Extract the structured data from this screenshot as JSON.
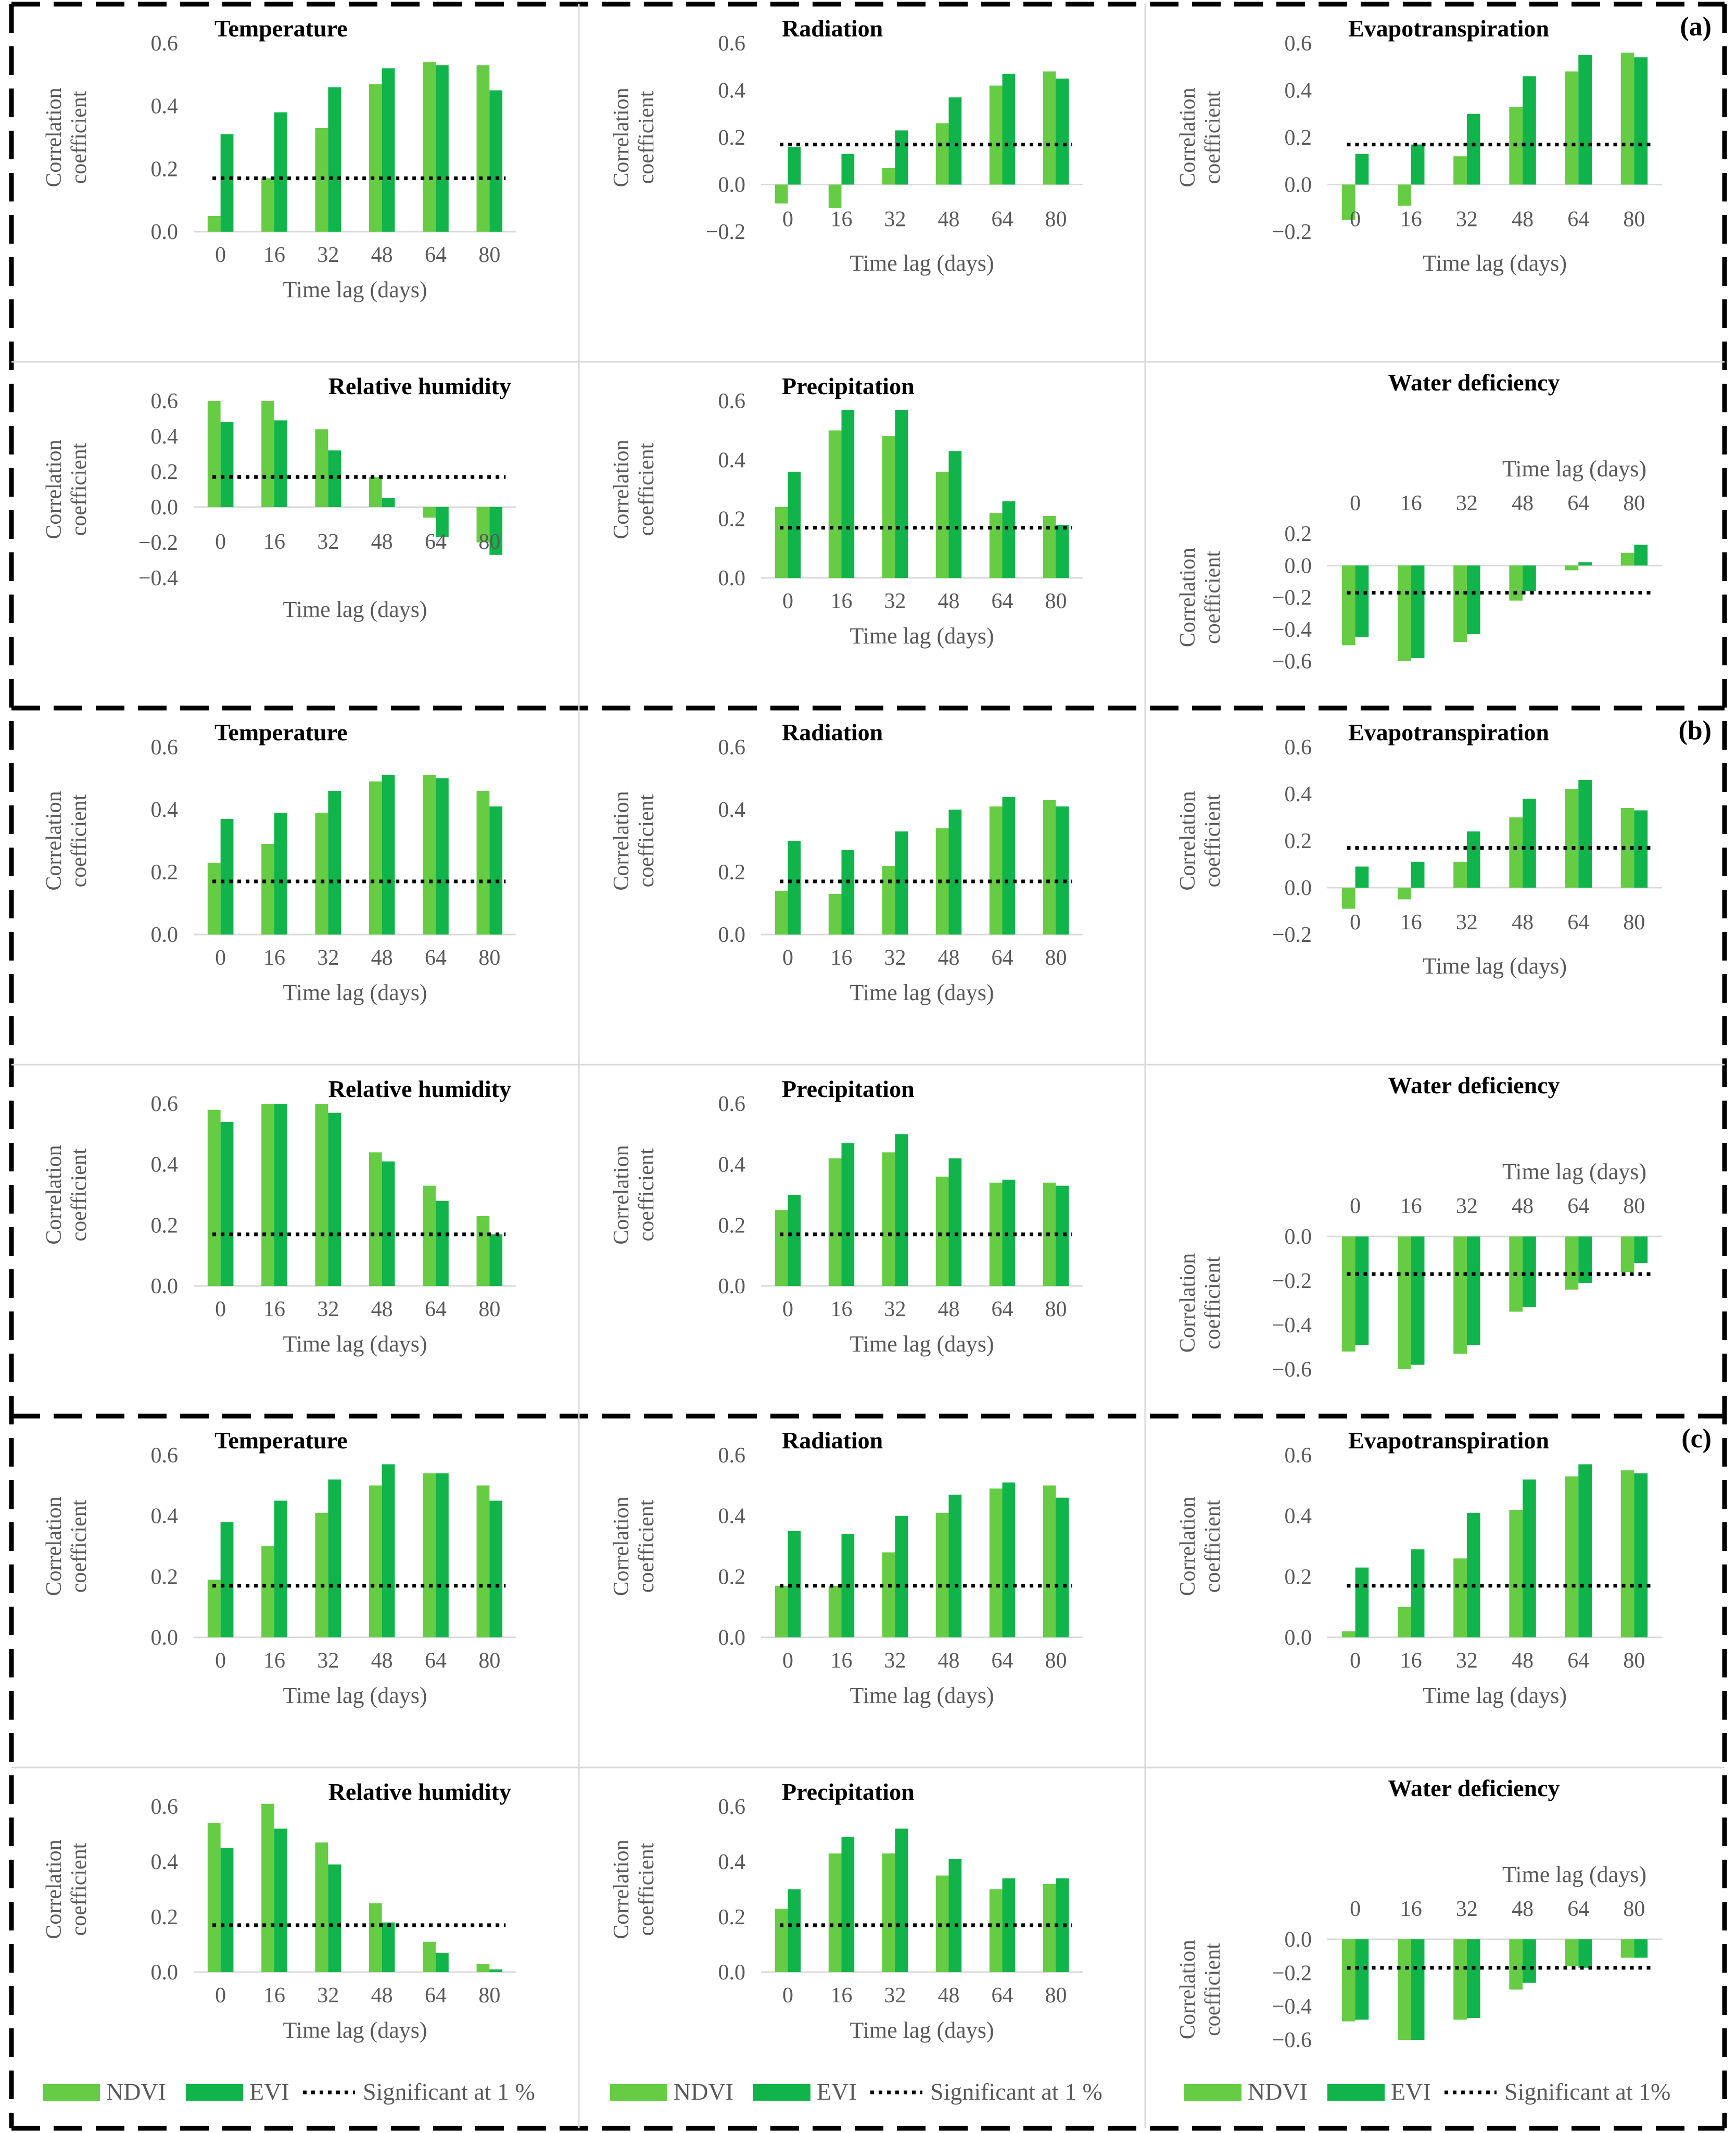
{
  "colors": {
    "ndvi": "#66cc44",
    "evi": "#11b44a",
    "sig": "#000000",
    "axis": "#d9d9d9",
    "text": "#595959",
    "title": "#000000",
    "border": "#000000",
    "grid": "#d9d9d9"
  },
  "common": {
    "xlabel": "Time lag (days)",
    "ylabel_line1": "Correlation",
    "ylabel_line2": "coefficient",
    "categories": [
      "0",
      "16",
      "32",
      "48",
      "64",
      "80"
    ],
    "significance": 0.17
  },
  "legend": [
    {
      "ndvi": "NDVI",
      "evi": "EVI",
      "sig": "Significant at 1 %"
    },
    {
      "ndvi": "NDVI",
      "evi": "EVI",
      "sig": "Significant at 1 %"
    },
    {
      "ndvi": "NDVI",
      "evi": "EVI",
      "sig": "Significant at 1%"
    }
  ],
  "chart_data": [
    {
      "panel": "(a)",
      "type": "bar",
      "title": "Temperature",
      "categories": [
        "0",
        "16",
        "32",
        "48",
        "64",
        "80"
      ],
      "ylim": [
        0.0,
        0.6
      ],
      "yticks": [
        "0.0",
        "0.2",
        "0.4",
        "0.6"
      ],
      "series": [
        {
          "name": "NDVI",
          "values": [
            0.05,
            0.17,
            0.33,
            0.47,
            0.54,
            0.53
          ]
        },
        {
          "name": "EVI",
          "values": [
            0.31,
            0.38,
            0.46,
            0.52,
            0.53,
            0.45
          ]
        }
      ],
      "significance": 0.17,
      "xlabel": "Time lag (days)",
      "ylabel": "Correlation coefficient"
    },
    {
      "panel": "(a)",
      "type": "bar",
      "title": "Radiation",
      "categories": [
        "0",
        "16",
        "32",
        "48",
        "64",
        "80"
      ],
      "ylim": [
        -0.2,
        0.6
      ],
      "yticks": [
        "−0.2",
        "0.0",
        "0.2",
        "0.4",
        "0.6"
      ],
      "series": [
        {
          "name": "NDVI",
          "values": [
            -0.08,
            -0.1,
            0.07,
            0.26,
            0.42,
            0.48
          ]
        },
        {
          "name": "EVI",
          "values": [
            0.16,
            0.13,
            0.23,
            0.37,
            0.47,
            0.45
          ]
        }
      ],
      "significance": 0.17,
      "xlabel": "Time lag (days)",
      "ylabel": "Correlation coefficient"
    },
    {
      "panel": "(a)",
      "type": "bar",
      "title": "Evapotranspiration",
      "categories": [
        "0",
        "16",
        "32",
        "48",
        "64",
        "80"
      ],
      "ylim": [
        -0.2,
        0.6
      ],
      "yticks": [
        "−0.2",
        "0.0",
        "0.2",
        "0.4",
        "0.6"
      ],
      "series": [
        {
          "name": "NDVI",
          "values": [
            -0.15,
            -0.09,
            0.12,
            0.33,
            0.48,
            0.56
          ]
        },
        {
          "name": "EVI",
          "values": [
            0.13,
            0.17,
            0.3,
            0.46,
            0.55,
            0.54
          ]
        }
      ],
      "significance": 0.17,
      "xlabel": "Time lag (days)",
      "ylabel": "Correlation coefficient"
    },
    {
      "panel": "(a)",
      "type": "bar",
      "title": "Relative humidity",
      "categories": [
        "0",
        "16",
        "32",
        "48",
        "64",
        "80"
      ],
      "ylim": [
        -0.4,
        0.6
      ],
      "yticks": [
        "−0.4",
        "−0.2",
        "0.0",
        "0.2",
        "0.4",
        "0.6"
      ],
      "series": [
        {
          "name": "NDVI",
          "values": [
            0.6,
            0.6,
            0.44,
            0.17,
            -0.06,
            -0.2
          ]
        },
        {
          "name": "EVI",
          "values": [
            0.48,
            0.49,
            0.32,
            0.05,
            -0.17,
            -0.27
          ]
        }
      ],
      "significance": 0.17,
      "xlabel": "Time lag (days)",
      "ylabel": "Correlation coefficient"
    },
    {
      "panel": "(a)",
      "type": "bar",
      "title": "Precipitation",
      "categories": [
        "0",
        "16",
        "32",
        "48",
        "64",
        "80"
      ],
      "ylim": [
        0.0,
        0.6
      ],
      "yticks": [
        "0.0",
        "0.2",
        "0.4",
        "0.6"
      ],
      "series": [
        {
          "name": "NDVI",
          "values": [
            0.24,
            0.5,
            0.48,
            0.36,
            0.22,
            0.21
          ]
        },
        {
          "name": "EVI",
          "values": [
            0.36,
            0.57,
            0.57,
            0.43,
            0.26,
            0.18
          ]
        }
      ],
      "significance": 0.17,
      "xlabel": "Time lag (days)",
      "ylabel": "Correlation coefficient"
    },
    {
      "panel": "(a)",
      "type": "bar",
      "title": "Water deficiency",
      "categories": [
        "0",
        "16",
        "32",
        "48",
        "64",
        "80"
      ],
      "ylim": [
        -0.6,
        0.2
      ],
      "yticks": [
        "−0.6",
        "−0.4",
        "−0.2",
        "0.0",
        "0.2"
      ],
      "series": [
        {
          "name": "NDVI",
          "values": [
            -0.5,
            -0.6,
            -0.48,
            -0.22,
            -0.03,
            0.08
          ]
        },
        {
          "name": "EVI",
          "values": [
            -0.45,
            -0.58,
            -0.43,
            -0.16,
            0.02,
            0.13
          ]
        }
      ],
      "significance": -0.17,
      "xlabel": "Time lag (days)",
      "ylabel": "Correlation coefficient"
    },
    {
      "panel": "(b)",
      "type": "bar",
      "title": "Temperature",
      "categories": [
        "0",
        "16",
        "32",
        "48",
        "64",
        "80"
      ],
      "ylim": [
        0.0,
        0.6
      ],
      "yticks": [
        "0.0",
        "0.2",
        "0.4",
        "0.6"
      ],
      "series": [
        {
          "name": "NDVI",
          "values": [
            0.23,
            0.29,
            0.39,
            0.49,
            0.51,
            0.46
          ]
        },
        {
          "name": "EVI",
          "values": [
            0.37,
            0.39,
            0.46,
            0.51,
            0.5,
            0.41
          ]
        }
      ],
      "significance": 0.17,
      "xlabel": "Time lag (days)",
      "ylabel": "Correlation coefficient"
    },
    {
      "panel": "(b)",
      "type": "bar",
      "title": "Radiation",
      "categories": [
        "0",
        "16",
        "32",
        "48",
        "64",
        "80"
      ],
      "ylim": [
        0.0,
        0.6
      ],
      "yticks": [
        "0.0",
        "0.2",
        "0.4",
        "0.6"
      ],
      "series": [
        {
          "name": "NDVI",
          "values": [
            0.14,
            0.13,
            0.22,
            0.34,
            0.41,
            0.43
          ]
        },
        {
          "name": "EVI",
          "values": [
            0.3,
            0.27,
            0.33,
            0.4,
            0.44,
            0.41
          ]
        }
      ],
      "significance": 0.17,
      "xlabel": "Time lag (days)",
      "ylabel": "Correlation coefficient"
    },
    {
      "panel": "(b)",
      "type": "bar",
      "title": "Evapotranspiration",
      "categories": [
        "0",
        "16",
        "32",
        "48",
        "64",
        "80"
      ],
      "ylim": [
        -0.2,
        0.6
      ],
      "yticks": [
        "−0.2",
        "0.0",
        "0.2",
        "0.4",
        "0.6"
      ],
      "series": [
        {
          "name": "NDVI",
          "values": [
            -0.09,
            -0.05,
            0.11,
            0.3,
            0.42,
            0.34
          ]
        },
        {
          "name": "EVI",
          "values": [
            0.09,
            0.11,
            0.24,
            0.38,
            0.46,
            0.33
          ]
        }
      ],
      "significance": 0.17,
      "xlabel": "Time lag (days)",
      "ylabel": "Correlation coefficient"
    },
    {
      "panel": "(b)",
      "type": "bar",
      "title": "Relative humidity",
      "categories": [
        "0",
        "16",
        "32",
        "48",
        "64",
        "80"
      ],
      "ylim": [
        0.0,
        0.6
      ],
      "yticks": [
        "0.0",
        "0.2",
        "0.4",
        "0.6"
      ],
      "series": [
        {
          "name": "NDVI",
          "values": [
            0.58,
            0.6,
            0.6,
            0.44,
            0.33,
            0.23
          ]
        },
        {
          "name": "EVI",
          "values": [
            0.54,
            0.6,
            0.57,
            0.41,
            0.28,
            0.17
          ]
        }
      ],
      "significance": 0.17,
      "xlabel": "Time lag (days)",
      "ylabel": "Correlation coefficient"
    },
    {
      "panel": "(b)",
      "type": "bar",
      "title": "Precipitation",
      "categories": [
        "0",
        "16",
        "32",
        "48",
        "64",
        "80"
      ],
      "ylim": [
        0.0,
        0.6
      ],
      "yticks": [
        "0.0",
        "0.2",
        "0.4",
        "0.6"
      ],
      "series": [
        {
          "name": "NDVI",
          "values": [
            0.25,
            0.42,
            0.44,
            0.36,
            0.34,
            0.34
          ]
        },
        {
          "name": "EVI",
          "values": [
            0.3,
            0.47,
            0.5,
            0.42,
            0.35,
            0.33
          ]
        }
      ],
      "significance": 0.17,
      "xlabel": "Time lag (days)",
      "ylabel": "Correlation coefficient"
    },
    {
      "panel": "(b)",
      "type": "bar",
      "title": "Water deficiency",
      "categories": [
        "0",
        "16",
        "32",
        "48",
        "64",
        "80"
      ],
      "ylim": [
        -0.6,
        0.0
      ],
      "yticks": [
        "−0.6",
        "−0.4",
        "−0.2",
        "0.0"
      ],
      "series": [
        {
          "name": "NDVI",
          "values": [
            -0.52,
            -0.6,
            -0.53,
            -0.34,
            -0.24,
            -0.16
          ]
        },
        {
          "name": "EVI",
          "values": [
            -0.49,
            -0.58,
            -0.49,
            -0.32,
            -0.21,
            -0.12
          ]
        }
      ],
      "significance": -0.17,
      "xlabel": "Time lag (days)",
      "ylabel": "Correlation coefficient"
    },
    {
      "panel": "(c)",
      "type": "bar",
      "title": "Temperature",
      "categories": [
        "0",
        "16",
        "32",
        "48",
        "64",
        "80"
      ],
      "ylim": [
        0.0,
        0.6
      ],
      "yticks": [
        "0.0",
        "0.2",
        "0.4",
        "0.6"
      ],
      "series": [
        {
          "name": "NDVI",
          "values": [
            0.19,
            0.3,
            0.41,
            0.5,
            0.54,
            0.5
          ]
        },
        {
          "name": "EVI",
          "values": [
            0.38,
            0.45,
            0.52,
            0.57,
            0.54,
            0.45
          ]
        }
      ],
      "significance": 0.17,
      "xlabel": "Time lag (days)",
      "ylabel": "Correlation coefficient"
    },
    {
      "panel": "(c)",
      "type": "bar",
      "title": "Radiation",
      "categories": [
        "0",
        "16",
        "32",
        "48",
        "64",
        "80"
      ],
      "ylim": [
        0.0,
        0.6
      ],
      "yticks": [
        "0.0",
        "0.2",
        "0.4",
        "0.6"
      ],
      "series": [
        {
          "name": "NDVI",
          "values": [
            0.17,
            0.17,
            0.28,
            0.41,
            0.49,
            0.5
          ]
        },
        {
          "name": "EVI",
          "values": [
            0.35,
            0.34,
            0.4,
            0.47,
            0.51,
            0.46
          ]
        }
      ],
      "significance": 0.17,
      "xlabel": "Time lag (days)",
      "ylabel": "Correlation coefficient"
    },
    {
      "panel": "(c)",
      "type": "bar",
      "title": "Evapotranspiration",
      "categories": [
        "0",
        "16",
        "32",
        "48",
        "64",
        "80"
      ],
      "ylim": [
        0.0,
        0.6
      ],
      "yticks": [
        "0.0",
        "0.2",
        "0.4",
        "0.6"
      ],
      "series": [
        {
          "name": "NDVI",
          "values": [
            0.02,
            0.1,
            0.26,
            0.42,
            0.53,
            0.55
          ]
        },
        {
          "name": "EVI",
          "values": [
            0.23,
            0.29,
            0.41,
            0.52,
            0.57,
            0.54
          ]
        }
      ],
      "significance": 0.17,
      "xlabel": "Time lag (days)",
      "ylabel": "Correlation coefficient"
    },
    {
      "panel": "(c)",
      "type": "bar",
      "title": "Relative humidity",
      "categories": [
        "0",
        "16",
        "32",
        "48",
        "64",
        "80"
      ],
      "ylim": [
        0.0,
        0.6
      ],
      "yticks": [
        "0.0",
        "0.2",
        "0.4",
        "0.6"
      ],
      "series": [
        {
          "name": "NDVI",
          "values": [
            0.54,
            0.61,
            0.47,
            0.25,
            0.11,
            0.03
          ]
        },
        {
          "name": "EVI",
          "values": [
            0.45,
            0.52,
            0.39,
            0.18,
            0.07,
            0.01
          ]
        }
      ],
      "significance": 0.17,
      "xlabel": "Time lag (days)",
      "ylabel": "Correlation coefficient"
    },
    {
      "panel": "(c)",
      "type": "bar",
      "title": "Precipitation",
      "categories": [
        "0",
        "16",
        "32",
        "48",
        "64",
        "80"
      ],
      "ylim": [
        0.0,
        0.6
      ],
      "yticks": [
        "0.0",
        "0.2",
        "0.4",
        "0.6"
      ],
      "series": [
        {
          "name": "NDVI",
          "values": [
            0.23,
            0.43,
            0.43,
            0.35,
            0.3,
            0.32
          ]
        },
        {
          "name": "EVI",
          "values": [
            0.3,
            0.49,
            0.52,
            0.41,
            0.34,
            0.34
          ]
        }
      ],
      "significance": 0.17,
      "xlabel": "Time lag (days)",
      "ylabel": "Correlation coefficient"
    },
    {
      "panel": "(c)",
      "type": "bar",
      "title": "Water deficiency",
      "categories": [
        "0",
        "16",
        "32",
        "48",
        "64",
        "80"
      ],
      "ylim": [
        -0.6,
        0.0
      ],
      "yticks": [
        "−0.6",
        "−0.4",
        "−0.2",
        "0.0"
      ],
      "series": [
        {
          "name": "NDVI",
          "values": [
            -0.49,
            -0.6,
            -0.48,
            -0.3,
            -0.16,
            -0.11
          ]
        },
        {
          "name": "EVI",
          "values": [
            -0.48,
            -0.6,
            -0.47,
            -0.26,
            -0.17,
            -0.11
          ]
        }
      ],
      "significance": -0.17,
      "xlabel": "Time lag (days)",
      "ylabel": "Correlation coefficient"
    }
  ]
}
